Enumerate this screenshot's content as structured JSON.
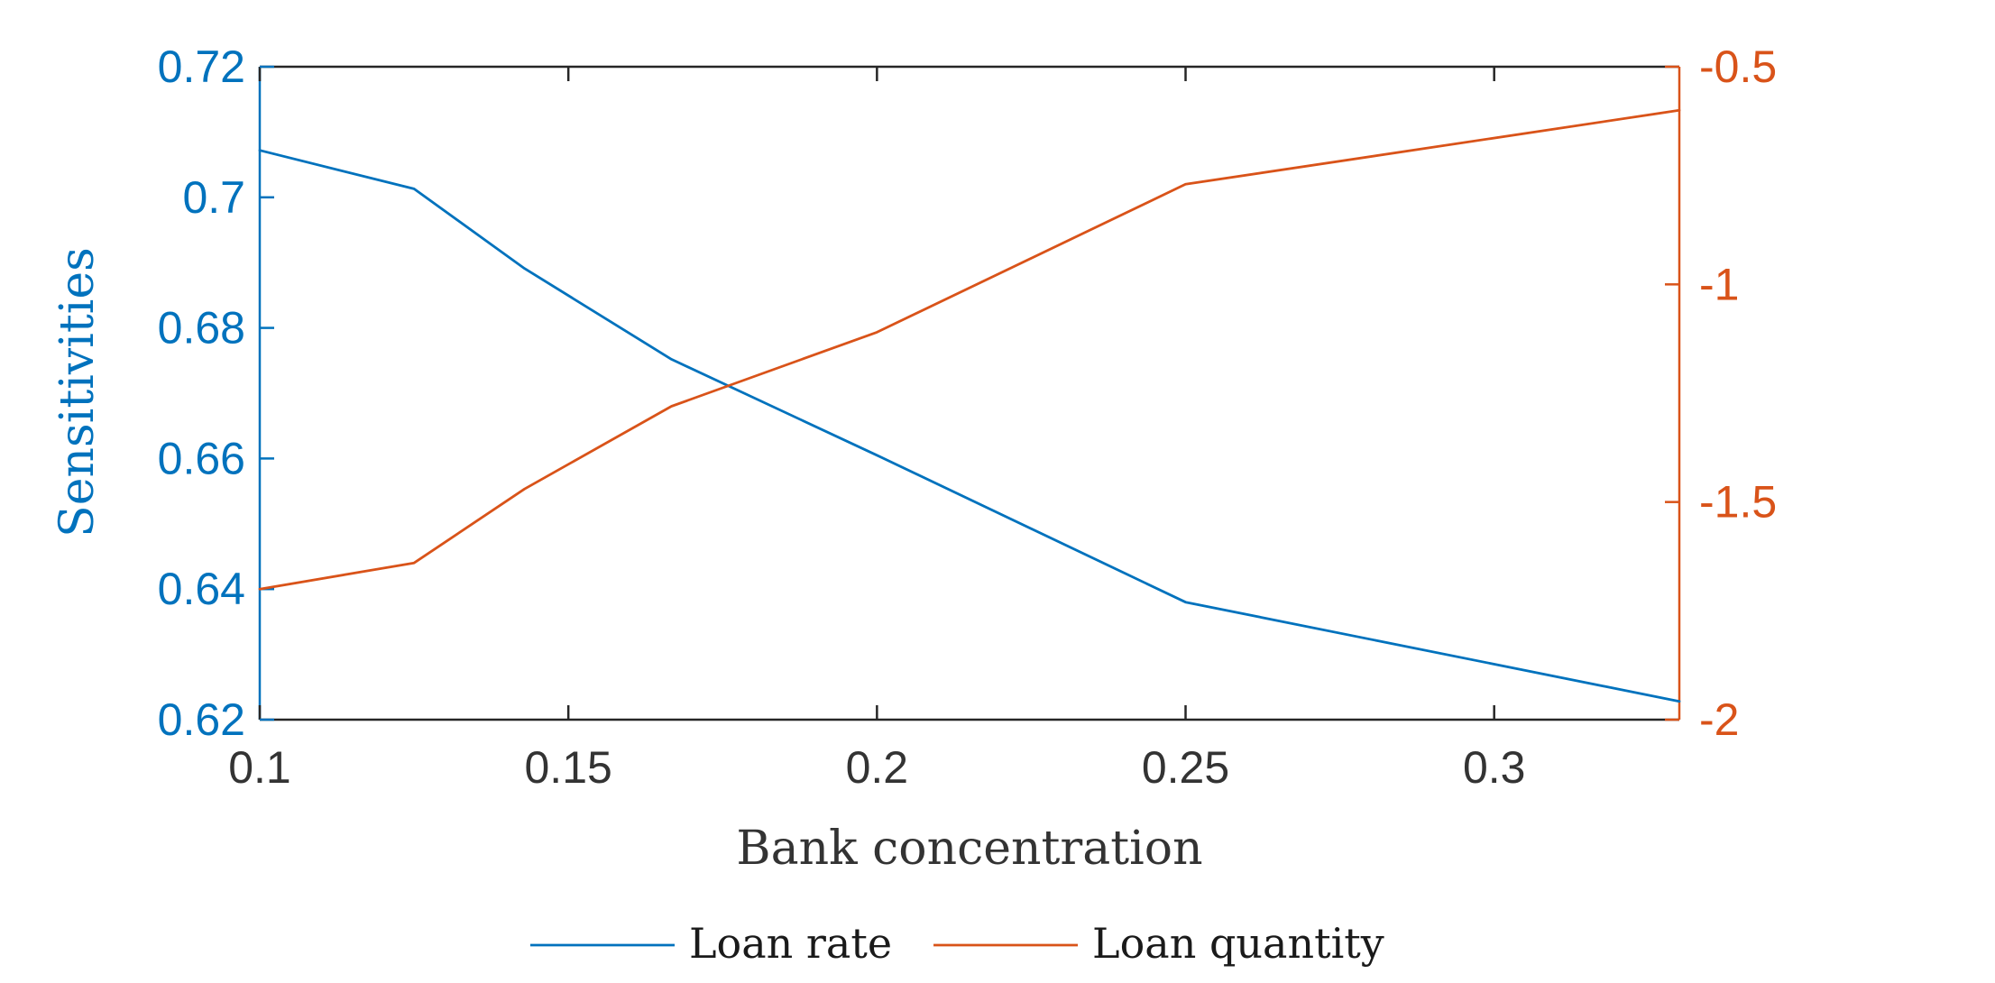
{
  "chart_data": {
    "type": "line",
    "xlabel": "Bank concentration",
    "xlim": [
      0.1,
      0.33
    ],
    "x_ticks": [
      "0.1",
      "0.15",
      "0.2",
      "0.25",
      "0.3"
    ],
    "x_tick_values": [
      0.1,
      0.15,
      0.2,
      0.25,
      0.3
    ],
    "y_left": {
      "label": "Sensitivities",
      "lim": [
        0.62,
        0.72
      ],
      "ticks": [
        "0.62",
        "0.64",
        "0.66",
        "0.68",
        "0.7",
        "0.72"
      ],
      "tick_values": [
        0.62,
        0.64,
        0.66,
        0.68,
        0.7,
        0.72
      ],
      "color": "#0072BD"
    },
    "y_right": {
      "label": "",
      "lim": [
        -2,
        -0.5
      ],
      "ticks": [
        "-2",
        "-1.5",
        "-1",
        "-0.5"
      ],
      "tick_values": [
        -2,
        -1.5,
        -1,
        -0.5
      ],
      "color": "#D95319"
    },
    "grid": false,
    "legend_position": "bottom",
    "series": [
      {
        "name": "Loan rate",
        "axis": "left",
        "color": "#0072BD",
        "x": [
          0.1,
          0.125,
          0.1429,
          0.1667,
          0.2,
          0.25,
          0.33
        ],
        "y": [
          0.7072,
          0.7013,
          0.6891,
          0.6752,
          0.6605,
          0.638,
          0.6228
        ]
      },
      {
        "name": "Loan quantity",
        "axis": "right",
        "color": "#D95319",
        "x": [
          0.1,
          0.125,
          0.1429,
          0.1667,
          0.2,
          0.25,
          0.33
        ],
        "y": [
          -1.7,
          -1.64,
          -1.47,
          -1.28,
          -1.11,
          -0.77,
          -0.6
        ]
      }
    ]
  }
}
